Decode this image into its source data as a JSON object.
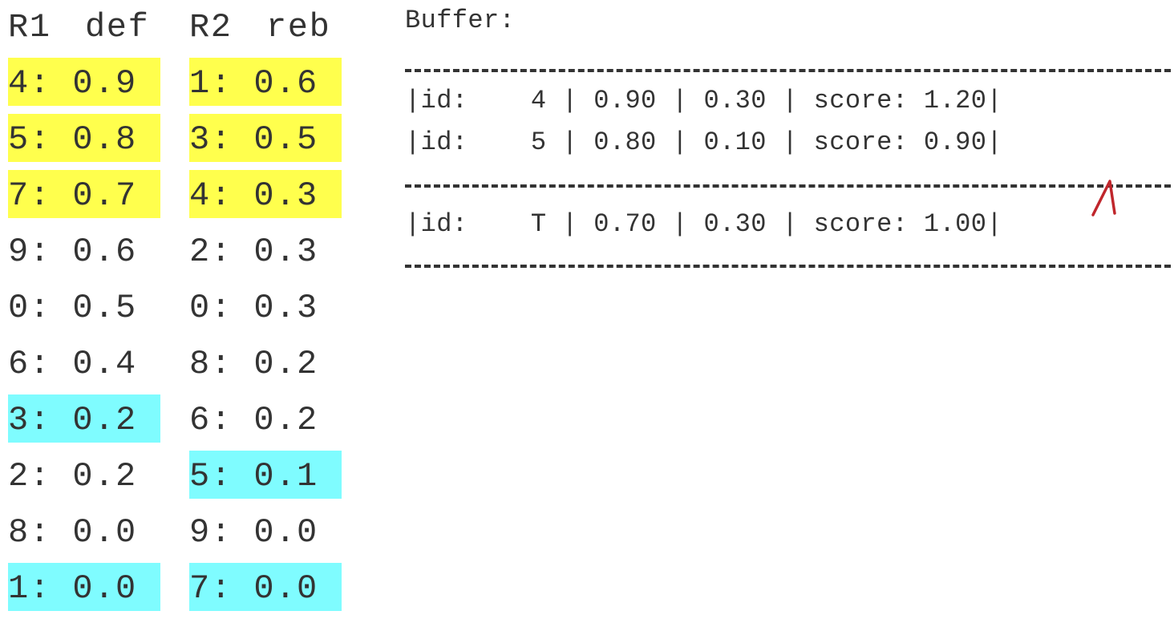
{
  "left_table": {
    "headers": [
      "R1",
      "def",
      "R2",
      "reb"
    ],
    "rows": [
      {
        "r1": "4: 0.9",
        "r1_hl": "yellow",
        "r2": "1: 0.6",
        "r2_hl": "yellow"
      },
      {
        "r1": "5: 0.8",
        "r1_hl": "yellow",
        "r2": "3: 0.5",
        "r2_hl": "yellow"
      },
      {
        "r1": "7: 0.7",
        "r1_hl": "yellow",
        "r2": "4: 0.3",
        "r2_hl": "yellow"
      },
      {
        "r1": "9: 0.6",
        "r1_hl": "",
        "r2": "2: 0.3",
        "r2_hl": ""
      },
      {
        "r1": "0: 0.5",
        "r1_hl": "",
        "r2": "0: 0.3",
        "r2_hl": ""
      },
      {
        "r1": "6: 0.4",
        "r1_hl": "",
        "r2": "8: 0.2",
        "r2_hl": ""
      },
      {
        "r1": "3: 0.2",
        "r1_hl": "cyan",
        "r2": "6: 0.2",
        "r2_hl": ""
      },
      {
        "r1": "2: 0.2",
        "r1_hl": "",
        "r2": "5: 0.1",
        "r2_hl": "cyan"
      },
      {
        "r1": "8: 0.0",
        "r1_hl": "",
        "r2": "9: 0.0",
        "r2_hl": ""
      },
      {
        "r1": "1: 0.0",
        "r1_hl": "cyan",
        "r2": "7: 0.0",
        "r2_hl": "cyan"
      }
    ]
  },
  "buffer": {
    "title": "Buffer:",
    "rows": [
      "|id:    4 | 0.90 | 0.30 | score: 1.20|",
      "|id:    5 | 0.80 | 0.10 | score: 0.90|"
    ],
    "threshold_row": "|id:    T | 0.70 | 0.30 | score: 1.00|"
  },
  "colors": {
    "yellow": "#ffff4d",
    "cyan": "#7ffcff",
    "text": "#333333",
    "annotation": "#c0262c"
  }
}
